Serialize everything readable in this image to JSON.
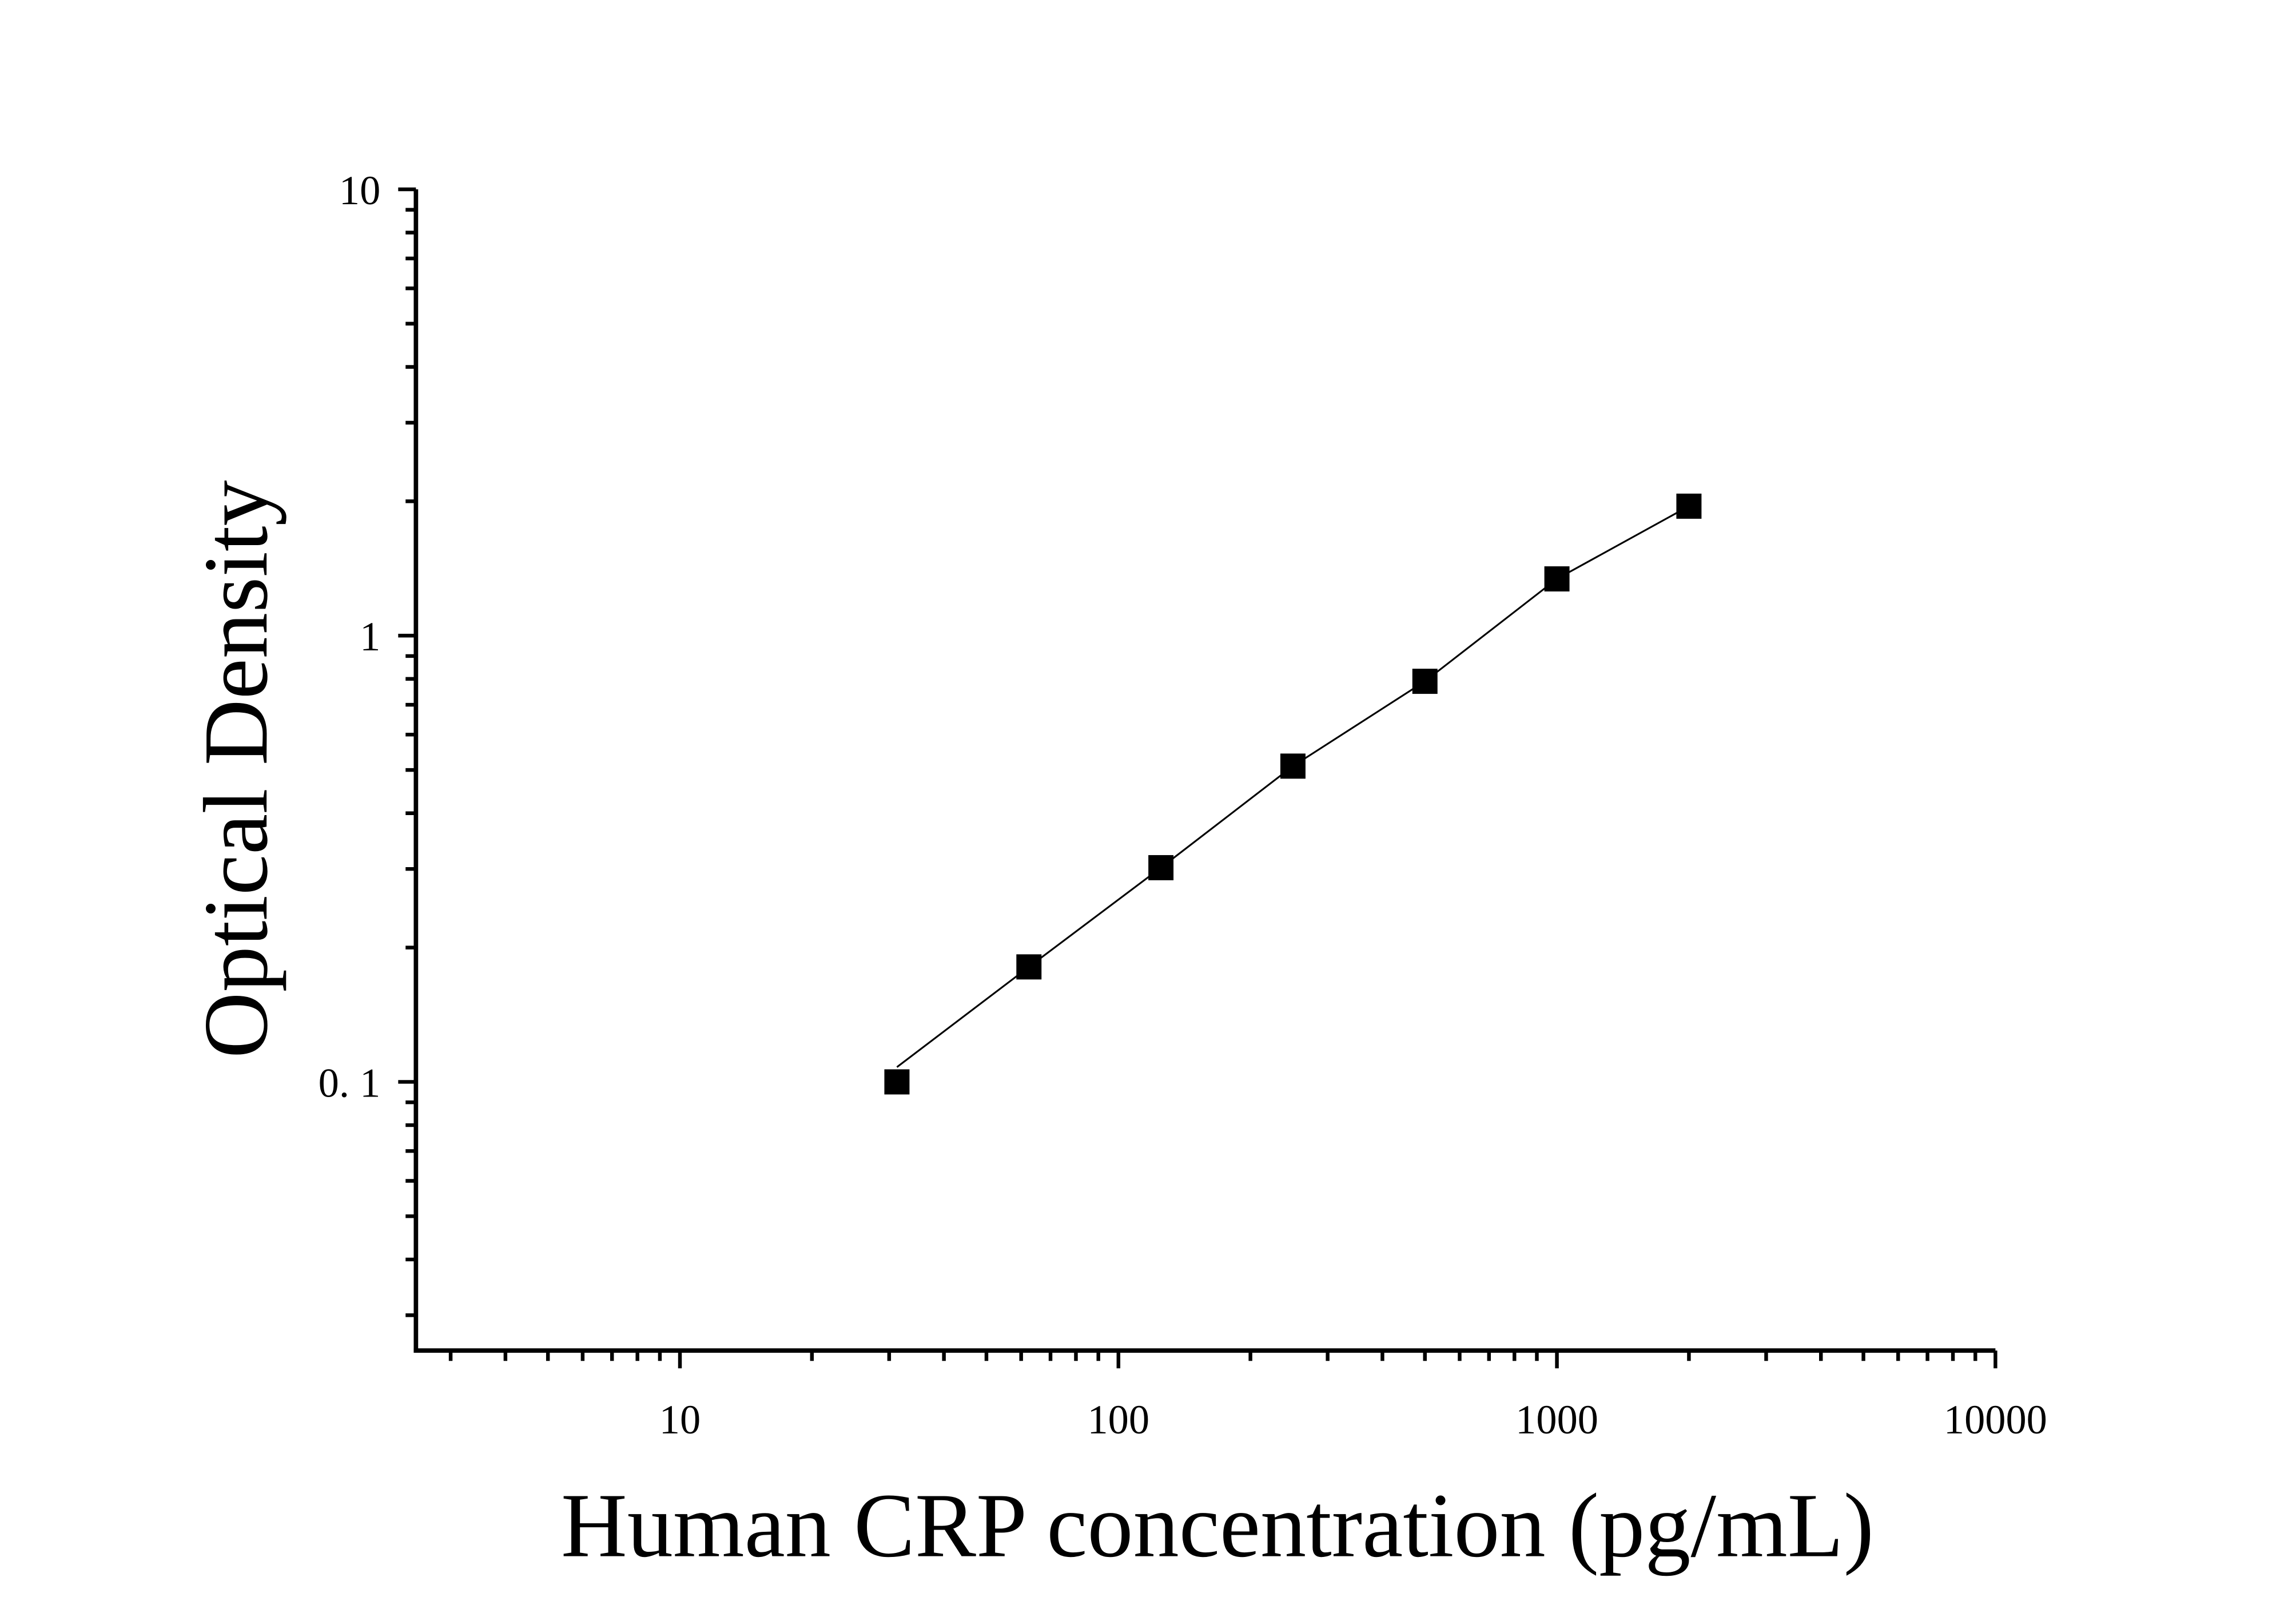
{
  "chart_data": {
    "type": "scatter",
    "title": "",
    "xlabel": "Human CRP concentration (pg/mL)",
    "ylabel": "Optical Density",
    "x_scale": "log",
    "y_scale": "log",
    "xlim": [
      2.5,
      10000
    ],
    "ylim": [
      0.025,
      10
    ],
    "x_ticks": [
      {
        "value": 10,
        "label": "10"
      },
      {
        "value": 100,
        "label": "100"
      },
      {
        "value": 1000,
        "label": "1000"
      },
      {
        "value": 10000,
        "label": "10000"
      }
    ],
    "y_ticks": [
      {
        "value": 0.1,
        "label": "0. 1"
      },
      {
        "value": 1,
        "label": "1"
      },
      {
        "value": 10,
        "label": "10"
      }
    ],
    "grid": false,
    "marker": "square",
    "color": "#000000",
    "series": [
      {
        "x": [
          31.25,
          62.5,
          125,
          250,
          500,
          1000,
          2000
        ],
        "y": [
          0.1,
          0.181,
          0.302,
          0.51,
          0.79,
          1.34,
          1.95
        ],
        "fit_line": true
      }
    ]
  }
}
